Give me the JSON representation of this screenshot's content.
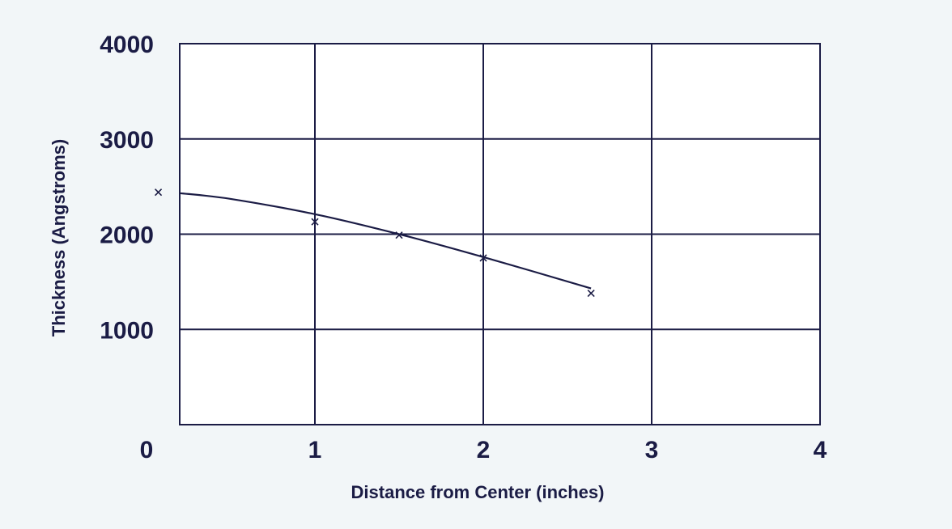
{
  "chart_data": {
    "type": "scatter",
    "title": "",
    "xlabel": "Distance from Center (inches)",
    "ylabel": "Thickness (Angstroms)",
    "xlim": [
      0,
      4
    ],
    "ylim": [
      0,
      4000
    ],
    "grid": true,
    "x_ticks": [
      "0",
      "1",
      "2",
      "3",
      "4"
    ],
    "y_ticks": [
      "1000",
      "2000",
      "3000",
      "4000"
    ],
    "points": [
      {
        "x": 0.07,
        "y": 2440
      },
      {
        "x": 1.0,
        "y": 2130
      },
      {
        "x": 1.5,
        "y": 1990
      },
      {
        "x": 2.0,
        "y": 1750
      },
      {
        "x": 2.64,
        "y": 1380
      }
    ],
    "fit_curve": [
      {
        "x": 0.0,
        "y": 2470
      },
      {
        "x": 0.5,
        "y": 2370
      },
      {
        "x": 1.0,
        "y": 2210
      },
      {
        "x": 1.5,
        "y": 2000
      },
      {
        "x": 2.0,
        "y": 1760
      },
      {
        "x": 2.64,
        "y": 1430
      }
    ],
    "marker": "x",
    "colors": {
      "line": "#1b1c45",
      "background": "#f2f6f8",
      "plot_area": "#ffffff"
    }
  }
}
